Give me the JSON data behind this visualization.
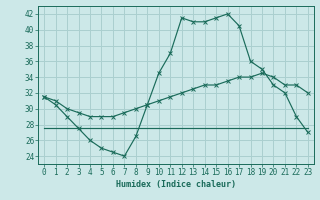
{
  "title": "",
  "xlabel": "Humidex (Indice chaleur)",
  "ylabel": "",
  "bg_color": "#cce8e8",
  "line_color": "#1a6b5a",
  "grid_color": "#aacfcf",
  "xlim": [
    -0.5,
    23.5
  ],
  "ylim": [
    23,
    43
  ],
  "yticks": [
    24,
    26,
    28,
    30,
    32,
    34,
    36,
    38,
    40,
    42
  ],
  "xticks": [
    0,
    1,
    2,
    3,
    4,
    5,
    6,
    7,
    8,
    9,
    10,
    11,
    12,
    13,
    14,
    15,
    16,
    17,
    18,
    19,
    20,
    21,
    22,
    23
  ],
  "line1_x": [
    0,
    1,
    2,
    3,
    4,
    5,
    6,
    7,
    8,
    9,
    10,
    11,
    12,
    13,
    14,
    15,
    16,
    17,
    18,
    19,
    20,
    21,
    22,
    23
  ],
  "line1_y": [
    31.5,
    30.5,
    29,
    27.5,
    26,
    25,
    24.5,
    24,
    26.5,
    30.5,
    34.5,
    37,
    41.5,
    41,
    41,
    41.5,
    42,
    40.5,
    36,
    35,
    33,
    32,
    29,
    27
  ],
  "line2_x": [
    0,
    1,
    2,
    3,
    4,
    5,
    6,
    7,
    8,
    9,
    10,
    11,
    12,
    13,
    14,
    15,
    16,
    17,
    18,
    19,
    20,
    21,
    22,
    23
  ],
  "line2_y": [
    31.5,
    31,
    30,
    29.5,
    29,
    29,
    29,
    29.5,
    30,
    30.5,
    31,
    31.5,
    32,
    32.5,
    33,
    33,
    33.5,
    34,
    34,
    34.5,
    34,
    33,
    33,
    32
  ],
  "line3_x": [
    0,
    23
  ],
  "line3_y": [
    27.5,
    27.5
  ],
  "tick_fontsize": 5.5,
  "xlabel_fontsize": 6,
  "marker_size": 2.2,
  "linewidth": 0.85
}
